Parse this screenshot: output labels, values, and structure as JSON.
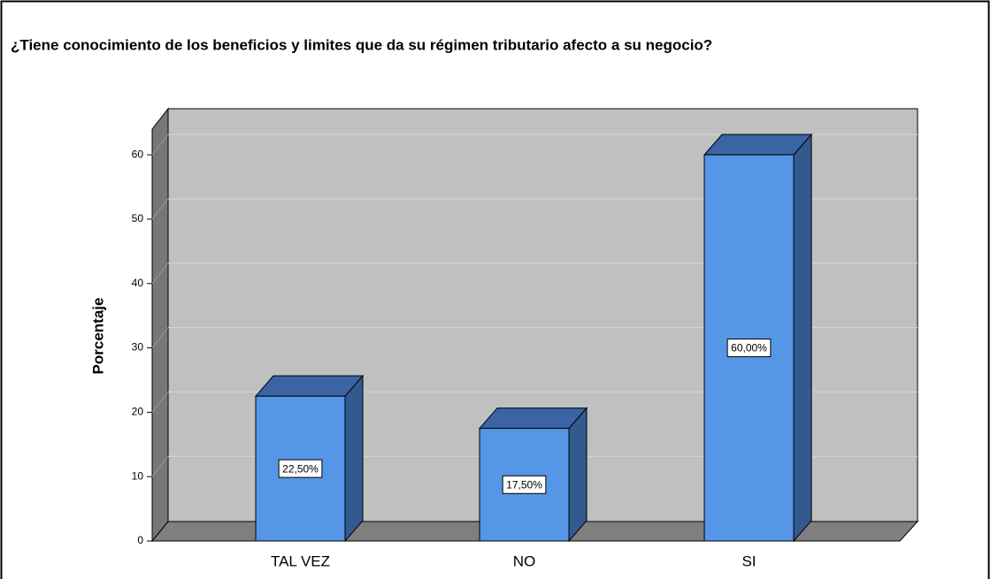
{
  "chart_data": {
    "type": "bar",
    "title": "¿Tiene conocimiento de los beneficios y limites que da su régimen tributario afecto a su negocio?",
    "ylabel": "Porcentaje",
    "categories": [
      "TAL VEZ",
      "NO",
      "SI"
    ],
    "values": [
      22.5,
      17.5,
      60
    ],
    "value_labels": [
      "22,50%",
      "17,50%",
      "60,00%"
    ],
    "color": "#5596e6",
    "ylim": [
      0,
      64
    ],
    "yticks": [
      0,
      10,
      20,
      30,
      40,
      50,
      60
    ],
    "grid": true
  }
}
